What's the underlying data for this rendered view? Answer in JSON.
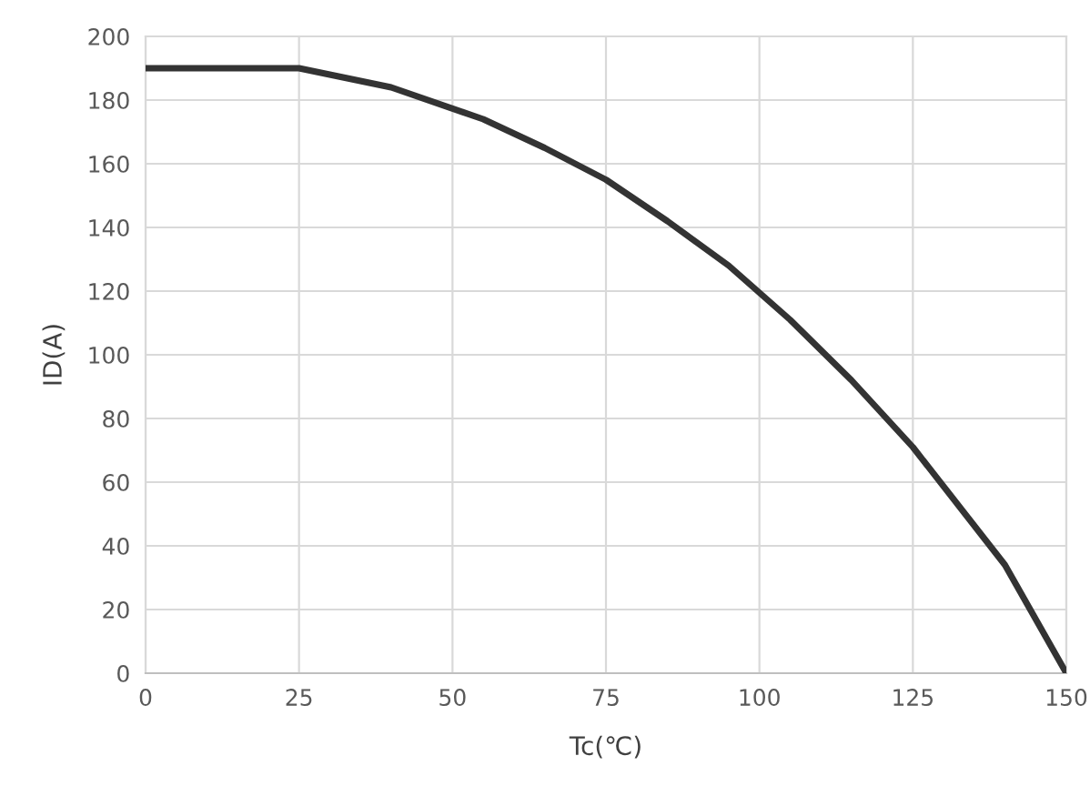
{
  "chart_data": {
    "type": "line",
    "xlabel": "Tc(℃)",
    "ylabel": "ID(A)",
    "x": [
      0,
      25,
      40,
      55,
      65,
      75,
      85,
      95,
      105,
      115,
      125,
      140,
      150
    ],
    "series": [
      {
        "color": "#333333",
        "values": [
          190,
          190,
          184,
          174,
          165,
          155,
          142,
          128,
          111,
          92,
          71,
          34,
          0
        ]
      }
    ],
    "xlim": [
      0,
      150
    ],
    "xticks": [
      0,
      25,
      50,
      75,
      100,
      125,
      150
    ],
    "ylim": [
      0,
      200
    ],
    "yticks": [
      0,
      20,
      40,
      60,
      80,
      100,
      120,
      140,
      160,
      180,
      200
    ],
    "grid": true,
    "marker": "none",
    "line_style": "solid"
  }
}
